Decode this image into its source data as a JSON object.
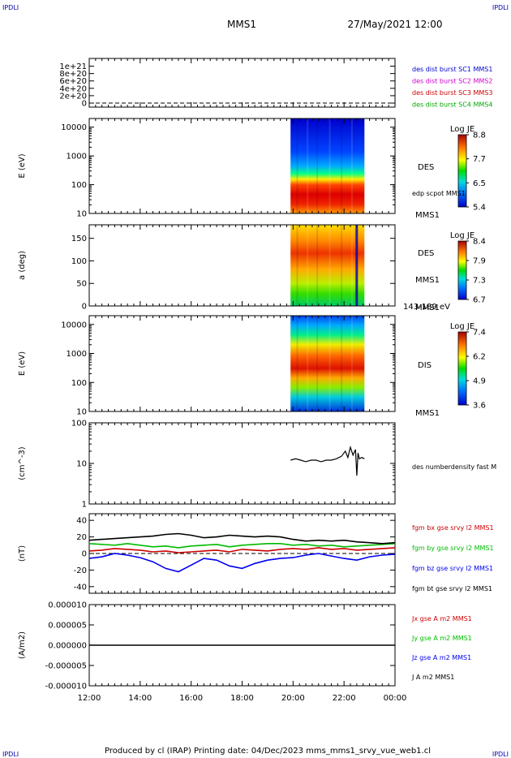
{
  "corner_labels": {
    "left": "IPDLI",
    "right": "IPDLI"
  },
  "header": {
    "mission": "MMS1",
    "datetime": "27/May/2021 12:00"
  },
  "footer": {
    "text": "Produced by cl (IRAP)   Printing date: 04/Dec/2023   mms_mms1_srvy_vue_web1.cl"
  },
  "colors": {
    "mms1": "#0000cc",
    "mms2": "#cc00cc",
    "mms3": "#cc0000",
    "mms4": "#00aa00",
    "bx": "#cc0000",
    "by": "#00bb00",
    "bz": "#0000ee",
    "bt": "#000000"
  },
  "chart_data": [
    {
      "id": "p1",
      "type": "line",
      "yticks": [
        "0",
        "2e+20",
        "4e+20",
        "6e+20",
        "8e+20",
        "1e+21"
      ],
      "legend": [
        "des dist burst SC1 MMS1",
        "des dist burst SC2 MMS2",
        "des dist burst SC3 MMS3",
        "des dist burst SC4 MMS4"
      ],
      "series": [
        {
          "x": [
            0,
            12
          ],
          "y": [
            0,
            0
          ]
        }
      ]
    },
    {
      "id": "p2",
      "type": "heatmap",
      "ylabel": "E (eV)",
      "yscale": "log",
      "ylim": [
        10,
        20000
      ],
      "yticks": [
        "10",
        "100",
        "1000",
        "10000"
      ],
      "species": "DES",
      "instrument": "MMS1",
      "annotation": "edp scpot MMS1",
      "colorbar": {
        "title": "Log JE",
        "ticks": [
          "8.8",
          "7.7",
          "6.5",
          "5.4"
        ]
      },
      "span": [
        7.9,
        10.8
      ]
    },
    {
      "id": "p3",
      "type": "heatmap",
      "ylabel": "a (deg)",
      "ylim": [
        0,
        180
      ],
      "yticks": [
        "0",
        "50",
        "100",
        "150"
      ],
      "species": "DES",
      "instrument": "MMS1",
      "energy_band": "143-189 eV",
      "colorbar": {
        "title": "Log JE",
        "ticks": [
          "8.4",
          "7.9",
          "7.3",
          "6.7"
        ]
      },
      "span": [
        7.9,
        10.8
      ]
    },
    {
      "id": "p4",
      "type": "heatmap",
      "ylabel": "E (eV)",
      "yscale": "log",
      "ylim": [
        10,
        20000
      ],
      "yticks": [
        "10",
        "100",
        "1000",
        "10000"
      ],
      "species": "DIS",
      "instrument": "MMS1",
      "colorbar": {
        "title": "Log JE",
        "ticks": [
          "7.4",
          "6.2",
          "4.9",
          "3.6"
        ]
      },
      "span": [
        7.9,
        10.8
      ]
    },
    {
      "id": "p5",
      "type": "line",
      "ylabel": "(cm^-3)",
      "yscale": "log",
      "ylim": [
        1,
        100
      ],
      "yticks": [
        "1",
        "10",
        "100"
      ],
      "legend": [
        "des numberdensity fast M"
      ],
      "series": [
        {
          "x": [
            7.9,
            8.1,
            8.3,
            8.5,
            8.7,
            8.9,
            9.1,
            9.3,
            9.5,
            9.7,
            9.9,
            10.05,
            10.15,
            10.25,
            10.35,
            10.45,
            10.5,
            10.55,
            10.6,
            10.7,
            10.8
          ],
          "y": [
            12,
            13,
            12,
            11,
            12,
            12,
            11,
            12,
            12,
            13,
            15,
            20,
            14,
            25,
            16,
            22,
            5,
            18,
            13,
            14,
            13
          ]
        }
      ]
    },
    {
      "id": "p6",
      "type": "line",
      "ylabel": "(nT)",
      "ylim": [
        -48,
        48
      ],
      "yticks": [
        "-40",
        "-20",
        "0",
        "20",
        "40"
      ],
      "legend": [
        "fgm bx gse srvy l2 MMS1",
        "fgm by gse srvy l2 MMS1",
        "fgm bz gse srvy l2 MMS1",
        "fgm bt gse srvy l2 MMS1"
      ],
      "series": [
        {
          "name": "bx",
          "x": [
            0,
            0.5,
            1,
            1.5,
            2,
            2.5,
            3,
            3.5,
            4,
            4.5,
            5,
            5.5,
            6,
            6.5,
            7,
            7.5,
            8,
            8.5,
            9,
            9.5,
            10,
            10.5,
            11,
            11.5,
            12
          ],
          "y": [
            3,
            4,
            6,
            5,
            4,
            2,
            3,
            1,
            2,
            3,
            4,
            2,
            5,
            4,
            3,
            5,
            6,
            5,
            7,
            5,
            6,
            4,
            5,
            6,
            7
          ]
        },
        {
          "name": "by",
          "x": [
            0,
            0.5,
            1,
            1.5,
            2,
            2.5,
            3,
            3.5,
            4,
            4.5,
            5,
            5.5,
            6,
            6.5,
            7,
            7.5,
            8,
            8.5,
            9,
            9.5,
            10,
            10.5,
            11,
            11.5,
            12
          ],
          "y": [
            12,
            11,
            10,
            12,
            10,
            8,
            9,
            7,
            9,
            10,
            11,
            8,
            10,
            11,
            12,
            12,
            10,
            11,
            9,
            10,
            8,
            9,
            10,
            11,
            12
          ]
        },
        {
          "name": "bz",
          "x": [
            0,
            0.5,
            1,
            1.5,
            2,
            2.5,
            3,
            3.5,
            4,
            4.5,
            5,
            5.5,
            6,
            6.5,
            7,
            7.5,
            8,
            8.5,
            9,
            9.5,
            10,
            10.5,
            11,
            11.5,
            12
          ],
          "y": [
            -6,
            -4,
            0,
            -2,
            -5,
            -10,
            -18,
            -22,
            -14,
            -6,
            -8,
            -15,
            -18,
            -12,
            -8,
            -6,
            -5,
            -2,
            0,
            -3,
            -6,
            -8,
            -4,
            -2,
            -1
          ]
        },
        {
          "name": "bt",
          "x": [
            0,
            0.5,
            1,
            1.5,
            2,
            2.5,
            3,
            3.5,
            4,
            4.5,
            5,
            5.5,
            6,
            6.5,
            7,
            7.5,
            8,
            8.5,
            9,
            9.5,
            10,
            10.5,
            11,
            11.5,
            12
          ],
          "y": [
            16,
            17,
            18,
            19,
            20,
            21,
            23,
            24,
            22,
            19,
            20,
            22,
            21,
            20,
            21,
            20,
            17,
            15,
            16,
            15,
            16,
            14,
            13,
            12,
            13
          ]
        }
      ]
    },
    {
      "id": "p7",
      "type": "line",
      "ylabel": "(A/m2)",
      "ylim": [
        -1e-05,
        1e-05
      ],
      "yticks": [
        "-0.000010",
        "-0.000005",
        "0.000000",
        "0.000005",
        "0.000010"
      ],
      "legend": [
        "Jx gse A m2 MMS1",
        "Jy gse A m2 MMS1",
        "Jz gse A m2 MMS1",
        "J A m2 MMS1"
      ],
      "xticks": [
        "12:00",
        "14:00",
        "16:00",
        "18:00",
        "20:00",
        "22:00",
        "00:00"
      ],
      "series": [
        {
          "x": [
            0,
            12
          ],
          "y": [
            0,
            0
          ]
        }
      ]
    }
  ]
}
